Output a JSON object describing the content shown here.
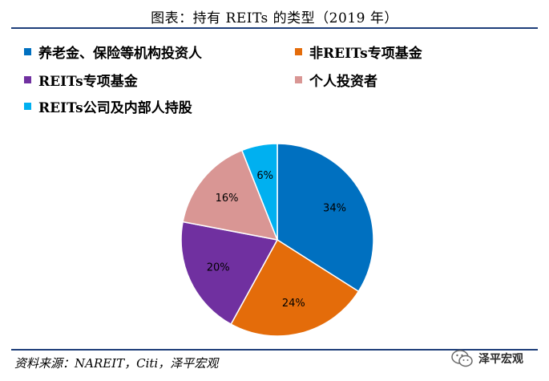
{
  "title": "图表：持有 REITs 的类型（2019 年）",
  "source": "资料来源：NAREIT，Citi，泽平宏观",
  "watermark": "泽平宏观",
  "chart_data": {
    "type": "pie",
    "title": "图表：持有 REITs 的类型（2019 年）",
    "legend_position": "top",
    "series": [
      {
        "name": "养老金、保险等机构投资人",
        "value": 34,
        "label": "34%",
        "color": "#0070c0"
      },
      {
        "name": "非REITs专项基金",
        "value": 24,
        "label": "24%",
        "color": "#e46c0a"
      },
      {
        "name": "REITs专项基金",
        "value": 20,
        "label": "20%",
        "color": "#7030a0"
      },
      {
        "name": "个人投资者",
        "value": 16,
        "label": "16%",
        "color": "#d99694"
      },
      {
        "name": "REITs公司及内部人持股",
        "value": 6,
        "label": "6%",
        "color": "#00b0f0"
      }
    ]
  }
}
